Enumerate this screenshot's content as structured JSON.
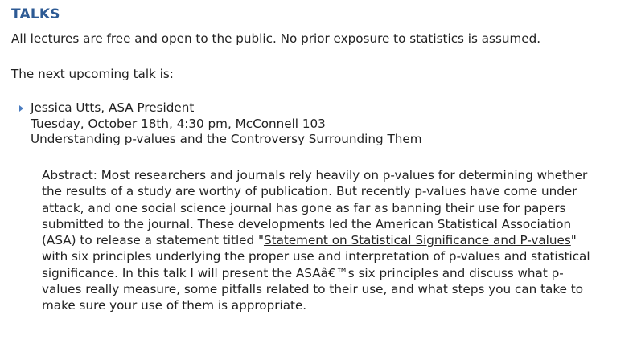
{
  "section": {
    "heading": "TALKS"
  },
  "intro": {
    "text": "All lectures are free and open to the public. No prior exposure to statistics is assumed."
  },
  "next_talk": {
    "label": "The next upcoming talk is:"
  },
  "talk": {
    "bullet_icon": "triangle-right-icon",
    "speaker": "Jessica Utts, ASA President",
    "datetime_location": "Tuesday, October 18th, 4:30 pm, McConnell 103",
    "title": "Understanding p-values and the Controversy Surrounding Them",
    "abstract_before_link": "Abstract: Most researchers and journals rely heavily on p-values for determining whether the results of a study are worthy of publication. But recently p-values have come under attack, and one social science journal has gone as far as banning their use for papers submitted to the journal. These developments led the American Statistical Association (ASA) to release a statement titled \"",
    "abstract_link": "Statement on Statistical Significance and P-values",
    "abstract_after_link": "\" with six principles underlying the proper use and interpretation of p-values and statistical significance. In this talk I will present the ASAâ€™s six principles and discuss what p-values really measure, some pitfalls related to their use, and what steps you can take to make sure your use of them is appropriate."
  },
  "colors": {
    "heading": "#2d5a94",
    "bullet": "#4a7cc0",
    "text": "#222222"
  }
}
